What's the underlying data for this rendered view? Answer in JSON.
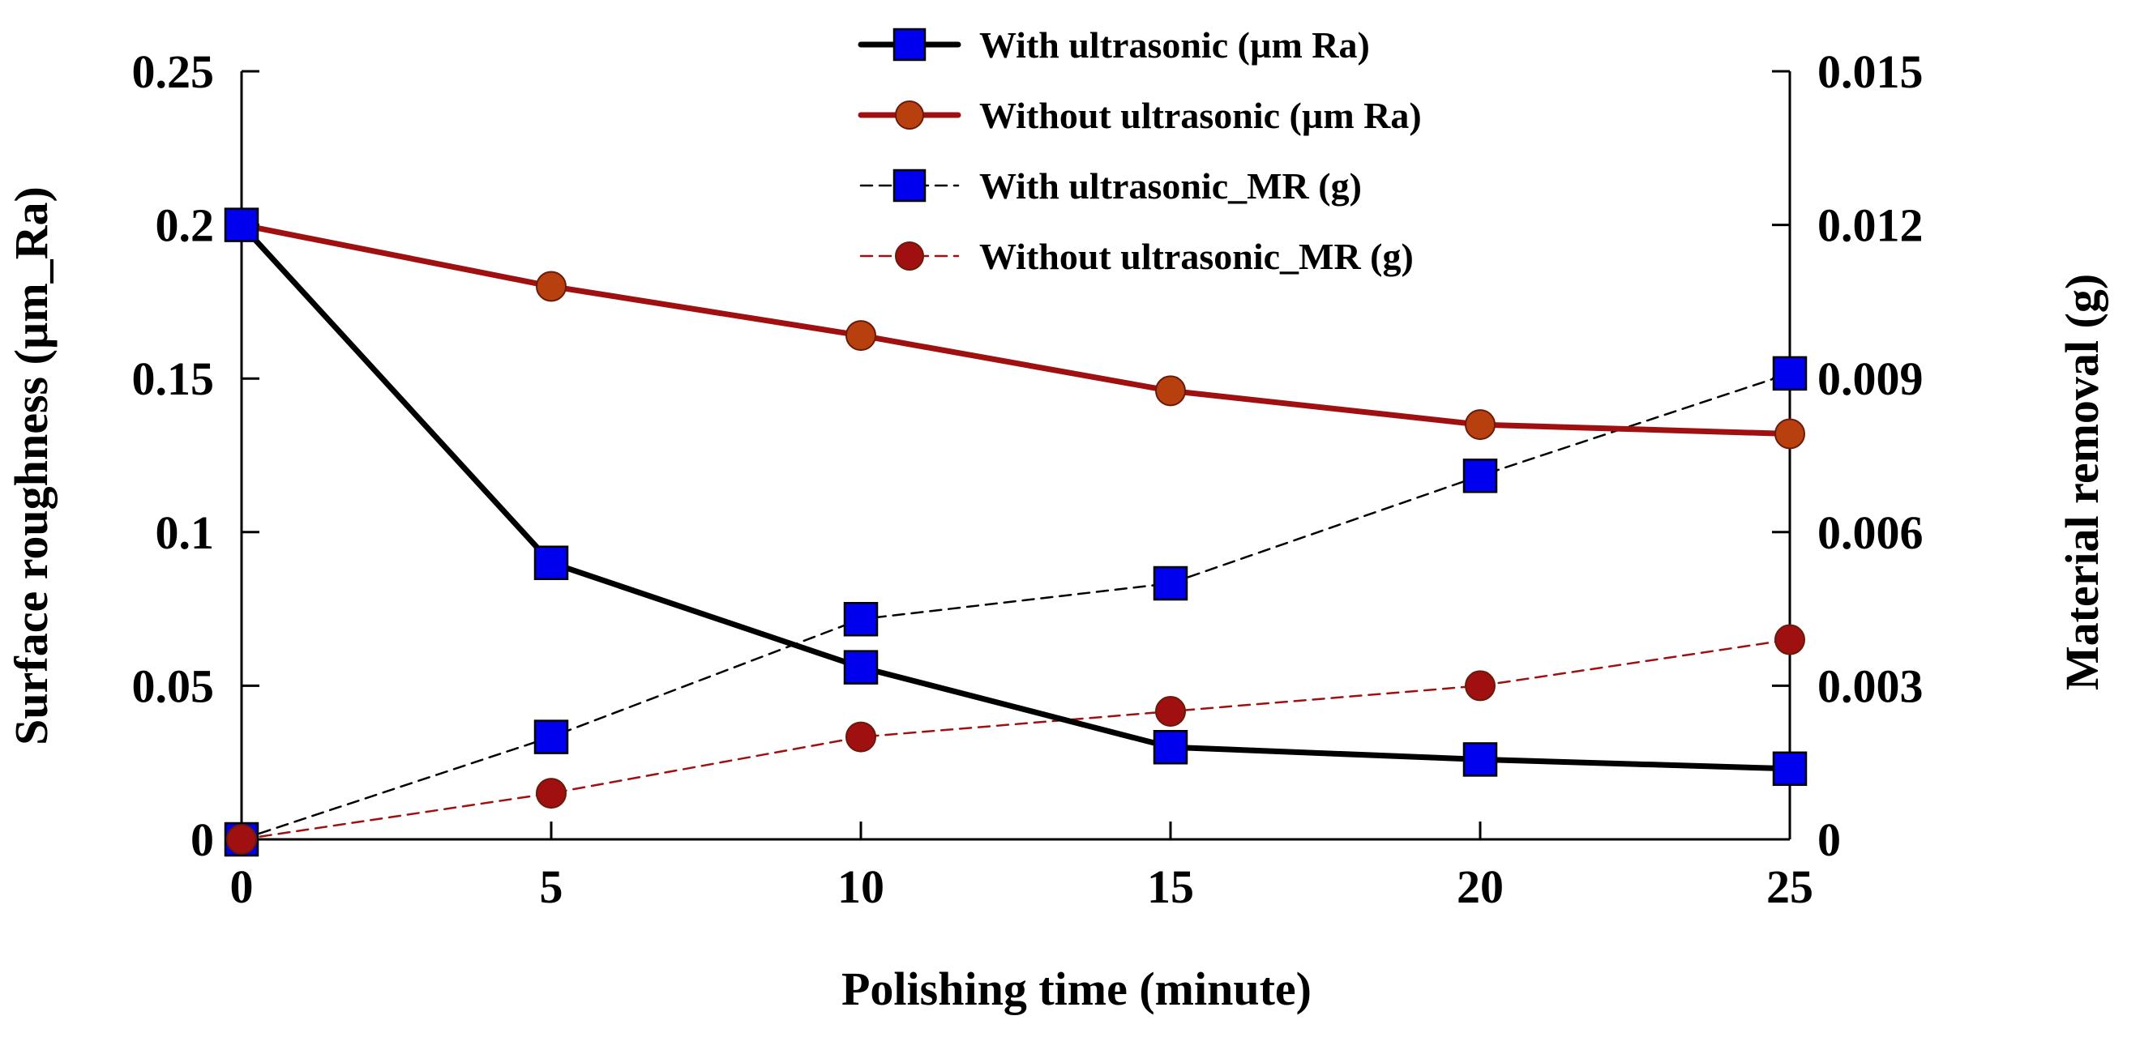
{
  "chart_data": {
    "type": "line",
    "title": "",
    "x": [
      0,
      5,
      10,
      15,
      20,
      25
    ],
    "xlabel": "Polishing time (minute)",
    "ylabel": "Surface roughness (µm_Ra)",
    "y2label": "Material removal (g)",
    "xlim": [
      0,
      25
    ],
    "ylim": [
      0,
      0.25
    ],
    "y2lim": [
      0,
      0.015
    ],
    "grid": false,
    "legend_position": "top-center",
    "x_ticks": [
      "0",
      "5",
      "10",
      "15",
      "20",
      "25"
    ],
    "y_ticks": [
      "0",
      "0.05",
      "0.1",
      "0.15",
      "0.2",
      "0.25"
    ],
    "y2_ticks": [
      "0",
      "0.003",
      "0.006",
      "0.009",
      "0.012",
      "0.015"
    ],
    "series": [
      {
        "name": "With ultrasonic (µm Ra)",
        "axis": "left",
        "values": [
          0.2,
          0.09,
          0.056,
          0.03,
          0.026,
          0.023
        ],
        "color": "#000000",
        "marker": "square",
        "marker_color": "#0000ee",
        "line_style": "solid"
      },
      {
        "name": "Without ultrasonic (µm Ra)",
        "axis": "left",
        "values": [
          0.2,
          0.18,
          0.164,
          0.146,
          0.135,
          0.132
        ],
        "color": "#a01010",
        "marker": "circle",
        "marker_color": "#b8400e",
        "line_style": "solid"
      },
      {
        "name": "With ultrasonic_MR (g)",
        "axis": "right",
        "values": [
          0,
          0.002,
          0.0043,
          0.005,
          0.0071,
          0.0091
        ],
        "color": "#000000",
        "marker": "square",
        "marker_color": "#0000ee",
        "line_style": "dashed"
      },
      {
        "name": "Without ultrasonic_MR (g)",
        "axis": "right",
        "values": [
          0,
          0.0009,
          0.002,
          0.0025,
          0.003,
          0.0039
        ],
        "color": "#a01010",
        "marker": "circle",
        "marker_color": "#a01010",
        "line_style": "dashed"
      }
    ]
  }
}
